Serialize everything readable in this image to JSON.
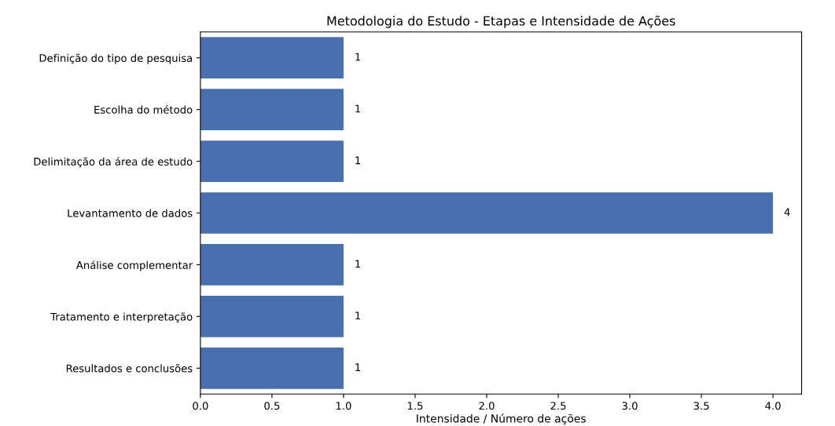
{
  "chart_data": {
    "type": "bar",
    "orientation": "horizontal",
    "title": "Metodologia do Estudo - Etapas e Intensidade de Ações",
    "xlabel": "Intensidade / Número de ações",
    "categories": [
      "Definição do tipo de pesquisa",
      "Escolha do método",
      "Delimitação da área de estudo",
      "Levantamento de dados",
      "Análise complementar",
      "Tratamento e interpretação",
      "Resultados e conclusões"
    ],
    "values": [
      1,
      1,
      1,
      4,
      1,
      1,
      1
    ],
    "color": "#4a6fae",
    "data_labels": true,
    "xlim": [
      0,
      4.2
    ],
    "xticks": [
      {
        "value": 0,
        "label": "0.0"
      },
      {
        "value": 0.5,
        "label": "0.5"
      },
      {
        "value": 1,
        "label": "1.0"
      },
      {
        "value": 1.5,
        "label": "1.5"
      },
      {
        "value": 2,
        "label": "2.0"
      },
      {
        "value": 2.5,
        "label": "2.5"
      },
      {
        "value": 3,
        "label": "3.0"
      },
      {
        "value": 3.5,
        "label": "3.5"
      },
      {
        "value": 4,
        "label": "4.0"
      }
    ],
    "grid": false
  }
}
